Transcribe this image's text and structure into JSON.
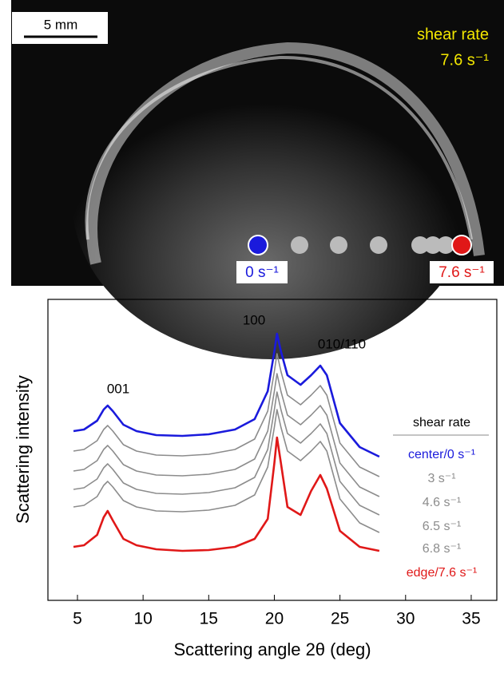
{
  "micrograph": {
    "scale_bar": "5 mm",
    "shear_label": "shear rate",
    "shear_value": "7.6 s⁻¹",
    "start_label": "0 s⁻¹",
    "end_label": "7.6 s⁻¹"
  },
  "chart_data": {
    "type": "line",
    "x_label": "Scattering angle 2θ (deg)",
    "y_label": "Scattering intensity",
    "annotations": [
      "001",
      "100",
      "010/110"
    ],
    "legend_title": "shear rate",
    "x": [
      4.7,
      5.5,
      6.5,
      7,
      7.3,
      7.7,
      8.5,
      9.5,
      11,
      13,
      15,
      17,
      18.5,
      19.5,
      20,
      20.2,
      20.5,
      21,
      22,
      22.8,
      23.5,
      24,
      25,
      26.5,
      28
    ],
    "series": [
      {
        "name": "center/0 s⁻¹",
        "color": "#1a1adc",
        "values": [
          212,
          214,
          225,
          239,
          244,
          237,
          220,
          212,
          207,
          206,
          208,
          214,
          227,
          262,
          312,
          334,
          312,
          282,
          270,
          282,
          294,
          282,
          222,
          192,
          180
        ]
      },
      {
        "name": "3 s⁻¹",
        "color": "#8c8c8c",
        "values": [
          187,
          189,
          200,
          214,
          219,
          212,
          195,
          187,
          182,
          181,
          183,
          189,
          202,
          237,
          287,
          309,
          287,
          257,
          245,
          257,
          269,
          257,
          197,
          167,
          155
        ]
      },
      {
        "name": "4.6 s⁻¹",
        "color": "#8c8c8c",
        "values": [
          162,
          164,
          175,
          189,
          194,
          187,
          170,
          162,
          157,
          156,
          158,
          164,
          177,
          212,
          262,
          284,
          262,
          232,
          220,
          232,
          244,
          232,
          172,
          142,
          130
        ]
      },
      {
        "name": "6.5 s⁻¹",
        "color": "#8c8c8c",
        "values": [
          139,
          141,
          152,
          166,
          171,
          164,
          147,
          139,
          134,
          133,
          135,
          141,
          154,
          189,
          239,
          261,
          239,
          209,
          197,
          209,
          221,
          209,
          149,
          119,
          107
        ]
      },
      {
        "name": "6.8 s⁻¹",
        "color": "#8c8c8c",
        "values": [
          117,
          119,
          130,
          144,
          149,
          142,
          125,
          117,
          112,
          111,
          113,
          119,
          132,
          167,
          217,
          239,
          217,
          187,
          175,
          187,
          199,
          187,
          127,
          97,
          85
        ]
      },
      {
        "name": "edge/7.6 s⁻¹",
        "color": "#e01818",
        "values": [
          67,
          69,
          82,
          104,
          112,
          100,
          77,
          69,
          64,
          62,
          63,
          67,
          77,
          102,
          172,
          204,
          172,
          117,
          107,
          137,
          157,
          140,
          87,
          67,
          62
        ]
      }
    ],
    "xlim": [
      2.75,
      36.95
    ],
    "ylim": [
      0,
      377
    ],
    "xticks": [
      5,
      10,
      15,
      20,
      25,
      30,
      35
    ]
  }
}
